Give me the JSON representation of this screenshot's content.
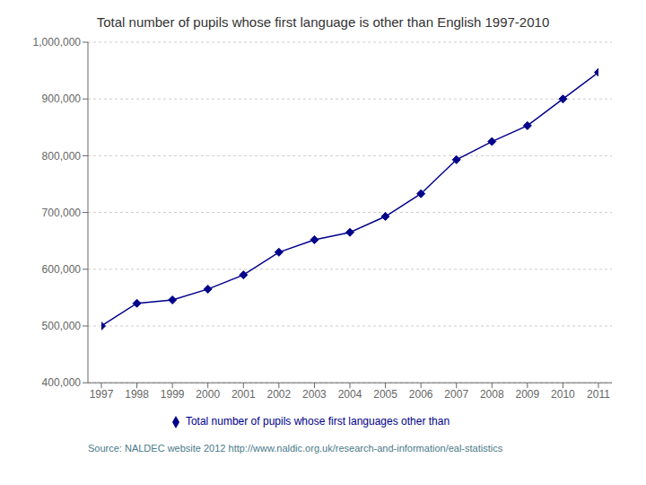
{
  "chart_data": {
    "type": "line",
    "title": "Total number of pupils whose first language is other than English 1997-2010",
    "x": [
      1997,
      1998,
      1999,
      2000,
      2001,
      2002,
      2003,
      2004,
      2005,
      2006,
      2007,
      2008,
      2009,
      2010,
      2011
    ],
    "series": [
      {
        "name": "Total number of pupils whose first languages other than",
        "color": "#00008B",
        "marker": "diamond",
        "values": [
          500000,
          540000,
          546000,
          565000,
          590000,
          630000,
          652000,
          665000,
          693000,
          733000,
          793000,
          825000,
          853000,
          900000,
          947000
        ]
      }
    ],
    "xlim": [
      1997,
      2011
    ],
    "xticks": [
      1997,
      1998,
      1999,
      2000,
      2001,
      2002,
      2003,
      2004,
      2005,
      2006,
      2007,
      2008,
      2009,
      2010,
      2011
    ],
    "ylim": [
      400000,
      1000000
    ],
    "yticks": [
      {
        "value": 400000,
        "label": "400,000"
      },
      {
        "value": 500000,
        "label": "500,000"
      },
      {
        "value": 600000,
        "label": "600,000"
      },
      {
        "value": 700000,
        "label": "700,000"
      },
      {
        "value": 800000,
        "label": "800,000"
      },
      {
        "value": 900000,
        "label": "900,000"
      },
      {
        "value": 1000000,
        "label": "1,000,000"
      }
    ],
    "grid": true,
    "legend": "bottom",
    "annotations": [
      "Source: NALDEC website 2012 http://www.naldic.org.uk/research-and-information/eal-statistics"
    ]
  }
}
